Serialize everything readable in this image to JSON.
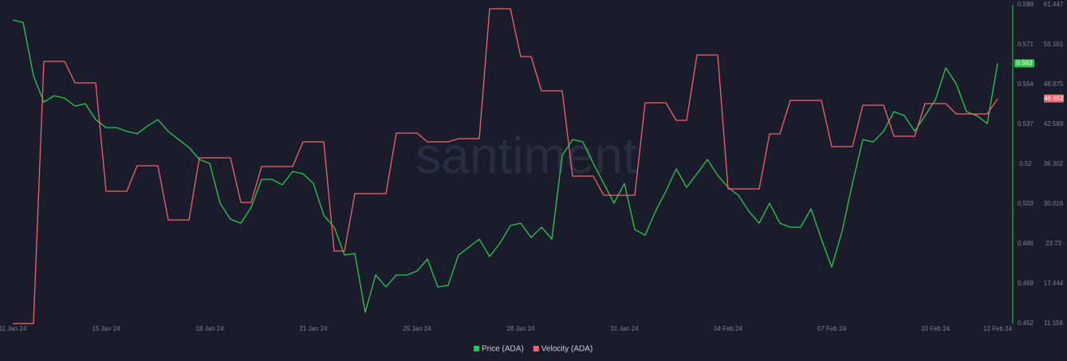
{
  "chart_data": {
    "type": "line",
    "watermark": "santiment",
    "categories": [
      "11 Jan 24",
      null,
      null,
      null,
      null,
      null,
      null,
      null,
      null,
      "15 Jan 24",
      null,
      null,
      null,
      null,
      null,
      null,
      null,
      null,
      null,
      "18 Jan 24",
      null,
      null,
      null,
      null,
      null,
      null,
      null,
      null,
      null,
      "21 Jan 24",
      null,
      null,
      null,
      null,
      null,
      null,
      null,
      null,
      null,
      "25 Jan 24",
      null,
      null,
      null,
      null,
      null,
      null,
      null,
      null,
      null,
      "28 Jan 24",
      null,
      null,
      null,
      null,
      null,
      null,
      null,
      null,
      null,
      "31 Jan 24",
      null,
      null,
      null,
      null,
      null,
      null,
      null,
      null,
      null,
      "04 Feb 24",
      null,
      null,
      null,
      null,
      null,
      null,
      null,
      null,
      null,
      "07 Feb 24",
      null,
      null,
      null,
      null,
      null,
      null,
      null,
      null,
      null,
      "10 Feb 24",
      null,
      null,
      null,
      null,
      null,
      "12 Feb 24"
    ],
    "series": [
      {
        "name": "Price (ADA)",
        "color": "#2fc752",
        "axis": "y",
        "values": [
          0.5815,
          0.5805,
          0.5577,
          0.5465,
          0.5492,
          0.5482,
          0.5448,
          0.5458,
          0.539,
          0.5356,
          0.5356,
          0.534,
          0.533,
          0.5363,
          0.539,
          0.534,
          0.5305,
          0.5271,
          0.522,
          0.5203,
          0.5033,
          0.4965,
          0.4948,
          0.5016,
          0.5135,
          0.5135,
          0.5112,
          0.5169,
          0.5159,
          0.5118,
          0.4982,
          0.4931,
          0.4812,
          0.4819,
          0.4568,
          0.4727,
          0.4676,
          0.4727,
          0.4727,
          0.4744,
          0.4795,
          0.4676,
          0.4683,
          0.4812,
          0.4846,
          0.488,
          0.4806,
          0.4863,
          0.4938,
          0.4948,
          0.4887,
          0.4931,
          0.488,
          0.5237,
          0.5305,
          0.5295,
          0.5203,
          0.5118,
          0.5033,
          0.5118,
          0.4921,
          0.4897,
          0.4999,
          0.5084,
          0.518,
          0.5101,
          0.5159,
          0.522,
          0.5152,
          0.5101,
          0.5067,
          0.4999,
          0.4948,
          0.5033,
          0.4948,
          0.4931,
          0.4931,
          0.501,
          0.488,
          0.4761,
          0.4914,
          0.5118,
          0.5305,
          0.5295,
          0.534,
          0.5424,
          0.5407,
          0.534,
          0.5407,
          0.5475,
          0.5611,
          0.5543,
          0.5424,
          0.5407,
          0.5373,
          0.563
        ]
      },
      {
        "name": "Velocity (ADA)",
        "color": "#f0646a",
        "axis": "y2",
        "values": [
          11.158,
          11.158,
          11.158,
          52.52,
          52.52,
          52.52,
          49.12,
          49.12,
          49.12,
          32.03,
          32.03,
          32.03,
          36.05,
          36.05,
          36.05,
          27.5,
          27.5,
          27.5,
          37.31,
          37.31,
          37.31,
          37.31,
          30.27,
          30.27,
          35.92,
          35.92,
          35.92,
          35.92,
          39.82,
          39.82,
          39.82,
          22.6,
          22.6,
          31.65,
          31.65,
          31.65,
          31.65,
          41.21,
          41.21,
          41.21,
          39.82,
          39.82,
          39.82,
          40.33,
          40.33,
          40.33,
          60.82,
          60.82,
          60.82,
          53.27,
          53.27,
          47.87,
          47.87,
          47.87,
          34.42,
          34.42,
          34.42,
          31.4,
          31.4,
          31.4,
          31.4,
          45.98,
          45.98,
          45.98,
          43.22,
          43.22,
          53.53,
          53.53,
          53.53,
          32.4,
          32.4,
          32.4,
          32.4,
          41.08,
          41.08,
          46.36,
          46.36,
          46.36,
          46.36,
          39.07,
          39.07,
          39.07,
          45.6,
          45.6,
          45.6,
          40.7,
          40.7,
          40.7,
          45.86,
          45.86,
          45.86,
          44.22,
          44.22,
          44.22,
          44.22,
          46.652
        ]
      }
    ],
    "ylim": [
      0.452,
      0.588
    ],
    "yticks": [
      0.452,
      0.469,
      0.486,
      0.503,
      0.52,
      0.537,
      0.554,
      0.571,
      0.588
    ],
    "y2lim": [
      11.158,
      61.447
    ],
    "y2ticks": [
      11.158,
      17.444,
      23.73,
      30.016,
      36.302,
      42.589,
      48.875,
      55.161,
      61.447
    ],
    "grid": false,
    "legend": "bottom"
  }
}
